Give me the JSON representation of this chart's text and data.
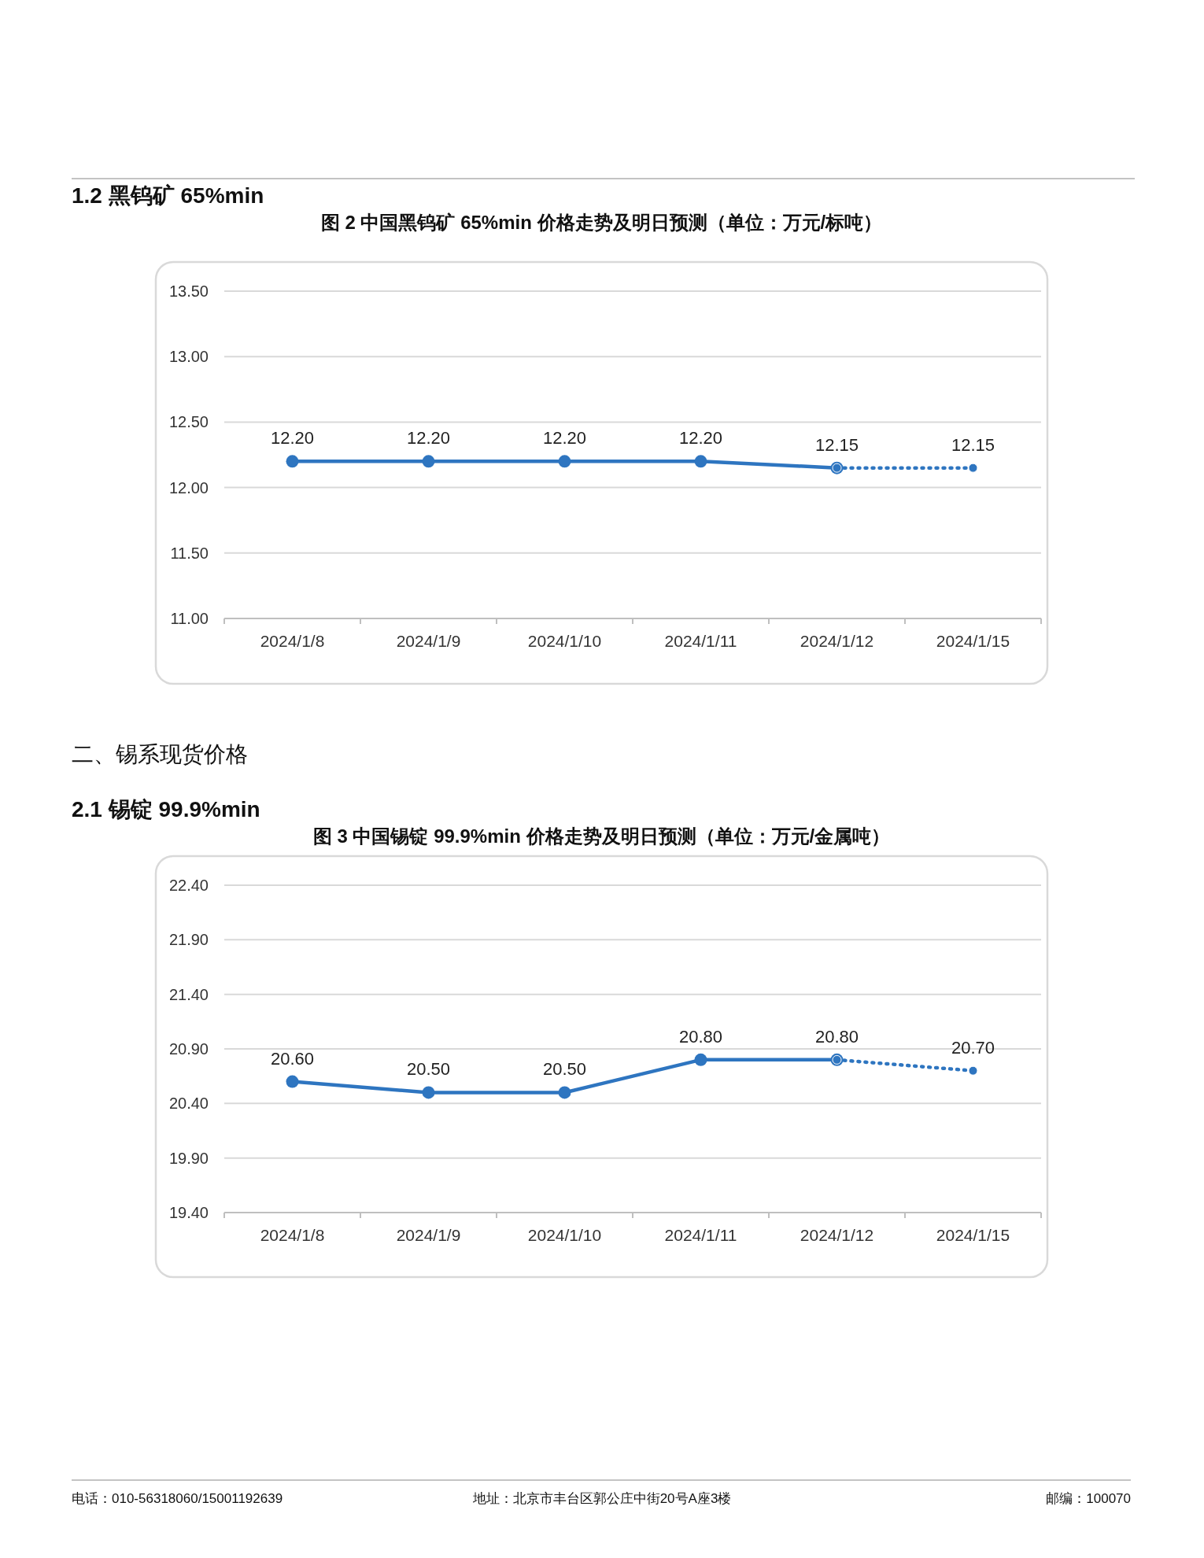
{
  "chart_data": [
    {
      "type": "line",
      "title": "图 2 中国黑钨矿 65%min 价格走势及明日预测（单位：万元/标吨）",
      "annotations": [
        "1.2 黑钨矿 65%min"
      ],
      "categories": [
        "2024/1/8",
        "2024/1/9",
        "2024/1/10",
        "2024/1/11",
        "2024/1/12",
        "2024/1/15"
      ],
      "series": [
        {
          "color": "#2e75c0",
          "line_style": "solid",
          "values": [
            12.2,
            12.2,
            12.2,
            12.2,
            12.15,
            null
          ],
          "value_labels": [
            "12.20",
            "12.20",
            "12.20",
            "12.20",
            "12.15",
            null
          ]
        },
        {
          "color": "#2e75c0",
          "line_style": "dotted",
          "values": [
            null,
            null,
            null,
            null,
            12.15,
            12.15
          ],
          "value_labels": [
            null,
            null,
            null,
            null,
            null,
            "12.15"
          ]
        }
      ],
      "ylim": [
        11,
        13.5
      ],
      "yticks": [
        {
          "value": 11,
          "label": "11.00"
        },
        {
          "value": 11.5,
          "label": "11.50"
        },
        {
          "value": 12,
          "label": "12.00"
        },
        {
          "value": 12.5,
          "label": "12.50"
        },
        {
          "value": 13,
          "label": "13.00"
        },
        {
          "value": 13.5,
          "label": "13.50"
        }
      ],
      "grid": "y",
      "marker": "circle"
    },
    {
      "type": "line",
      "title": "图 3 中国锡锭 99.9%min 价格走势及明日预测（单位：万元/金属吨）",
      "annotations": [
        "二、锡系现货价格",
        "2.1 锡锭 99.9%min",
        "电话：010-56318060/15001192639",
        "地址：北京市丰台区郭公庄中街20号A座3楼",
        "邮编：100070"
      ],
      "categories": [
        "2024/1/8",
        "2024/1/9",
        "2024/1/10",
        "2024/1/11",
        "2024/1/12",
        "2024/1/15"
      ],
      "series": [
        {
          "color": "#2e75c0",
          "line_style": "solid",
          "values": [
            20.6,
            20.5,
            20.5,
            20.8,
            20.8,
            null
          ],
          "value_labels": [
            "20.60",
            "20.50",
            "20.50",
            "20.80",
            "20.80",
            null
          ]
        },
        {
          "color": "#2e75c0",
          "line_style": "dotted",
          "values": [
            null,
            null,
            null,
            null,
            20.8,
            20.7
          ],
          "value_labels": [
            null,
            null,
            null,
            null,
            null,
            "20.70"
          ]
        }
      ],
      "ylim": [
        19.4,
        22.4
      ],
      "yticks": [
        {
          "value": 19.4,
          "label": "19.40"
        },
        {
          "value": 19.9,
          "label": "19.90"
        },
        {
          "value": 20.4,
          "label": "20.40"
        },
        {
          "value": 20.9,
          "label": "20.90"
        },
        {
          "value": 21.4,
          "label": "21.40"
        },
        {
          "value": 21.9,
          "label": "21.90"
        },
        {
          "value": 22.4,
          "label": "22.40"
        }
      ],
      "grid": "y",
      "marker": "circle"
    }
  ]
}
